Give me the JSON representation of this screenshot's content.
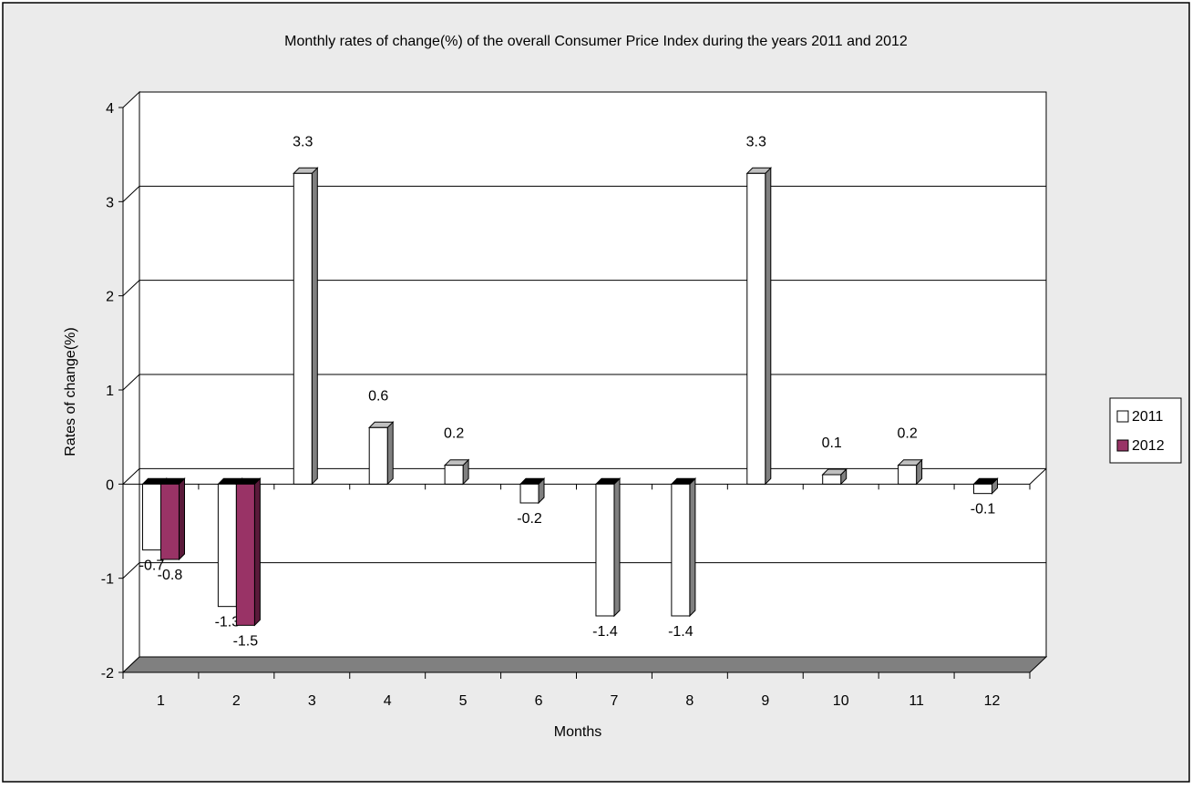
{
  "chart_data": {
    "type": "bar",
    "title": "Monthly rates of change(%) of the overall Consumer Price Index during the years 2011 and 2012",
    "xlabel": "Months",
    "ylabel": "Rates of change(%)",
    "categories": [
      "1",
      "2",
      "3",
      "4",
      "5",
      "6",
      "7",
      "8",
      "9",
      "10",
      "11",
      "12"
    ],
    "y_ticks": [
      "-2",
      "-1",
      "0",
      "1",
      "2",
      "3",
      "4"
    ],
    "ylim": [
      -2,
      4
    ],
    "grid": true,
    "three_d": true,
    "legend_position": "right",
    "series": [
      {
        "name": "2011",
        "color": "#FFFFFF",
        "values": [
          -0.7,
          -1.3,
          3.3,
          0.6,
          0.2,
          -0.2,
          -1.4,
          -1.4,
          3.3,
          0.1,
          0.2,
          -0.1
        ],
        "labels": [
          "-0.7",
          "-1.3",
          "3.3",
          "0.6",
          "0.2",
          "-0.2",
          "-1.4",
          "-1.4",
          "3.3",
          "0.1",
          "0.2",
          "-0.1"
        ]
      },
      {
        "name": "2012",
        "color": "#993366",
        "values": [
          -0.8,
          -1.5,
          null,
          null,
          null,
          null,
          null,
          null,
          null,
          null,
          null,
          null
        ],
        "labels": [
          "-0.8",
          "-1.5",
          "",
          "",
          "",
          "",
          "",
          "",
          "",
          "",
          "",
          ""
        ]
      }
    ]
  },
  "colors": {
    "chart_area": "#EBEBEB",
    "plot_area": "#FFFFFF",
    "floor": "#808080",
    "bar_side": "#808080",
    "bar_top": "#C0C0C0"
  }
}
